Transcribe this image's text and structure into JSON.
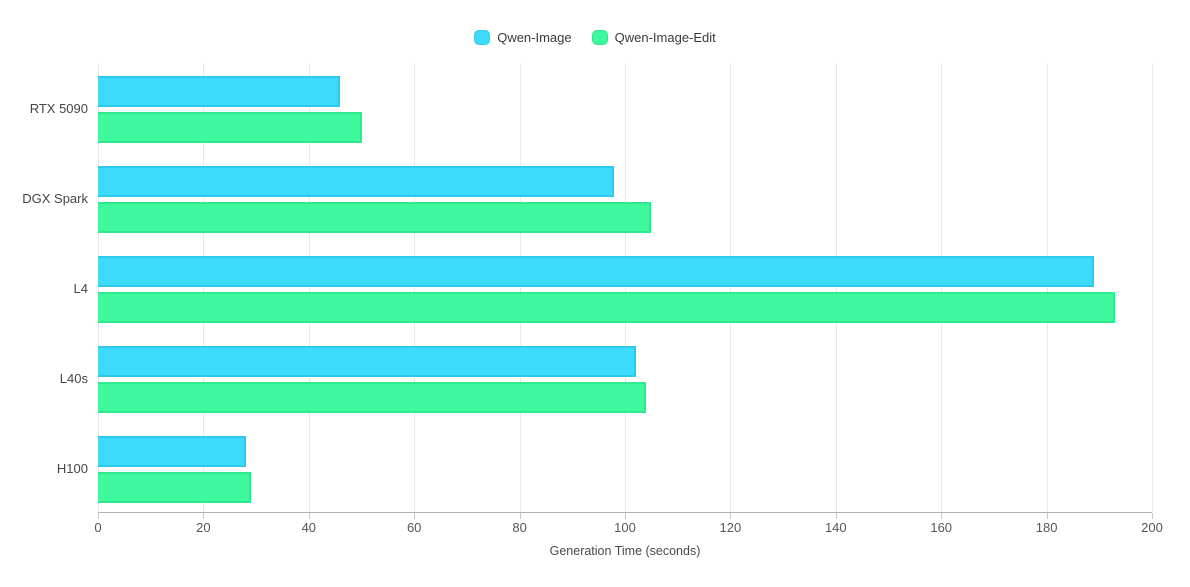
{
  "chart_data": {
    "type": "bar",
    "orientation": "horizontal",
    "categories": [
      "RTX 5090",
      "DGX Spark",
      "L4",
      "L40s",
      "H100"
    ],
    "series": [
      {
        "name": "Qwen-Image",
        "values": [
          46,
          98,
          189,
          102,
          28
        ],
        "color": "#3CDAFB",
        "border_color": "#2FC8EE"
      },
      {
        "name": "Qwen-Image-Edit",
        "values": [
          50,
          105,
          193,
          104,
          29
        ],
        "color": "#3EF99D",
        "border_color": "#30E88D"
      }
    ],
    "xlabel": "Generation Time (seconds)",
    "xlim": [
      0,
      200
    ],
    "xticks": [
      0,
      20,
      40,
      60,
      80,
      100,
      120,
      140,
      160,
      180,
      200
    ],
    "grid": "vertical",
    "legend_position": "top",
    "background_color": "#ffffff",
    "gridline_color": "#e9e9e9",
    "axis_line_color": "#b3b3b3"
  }
}
